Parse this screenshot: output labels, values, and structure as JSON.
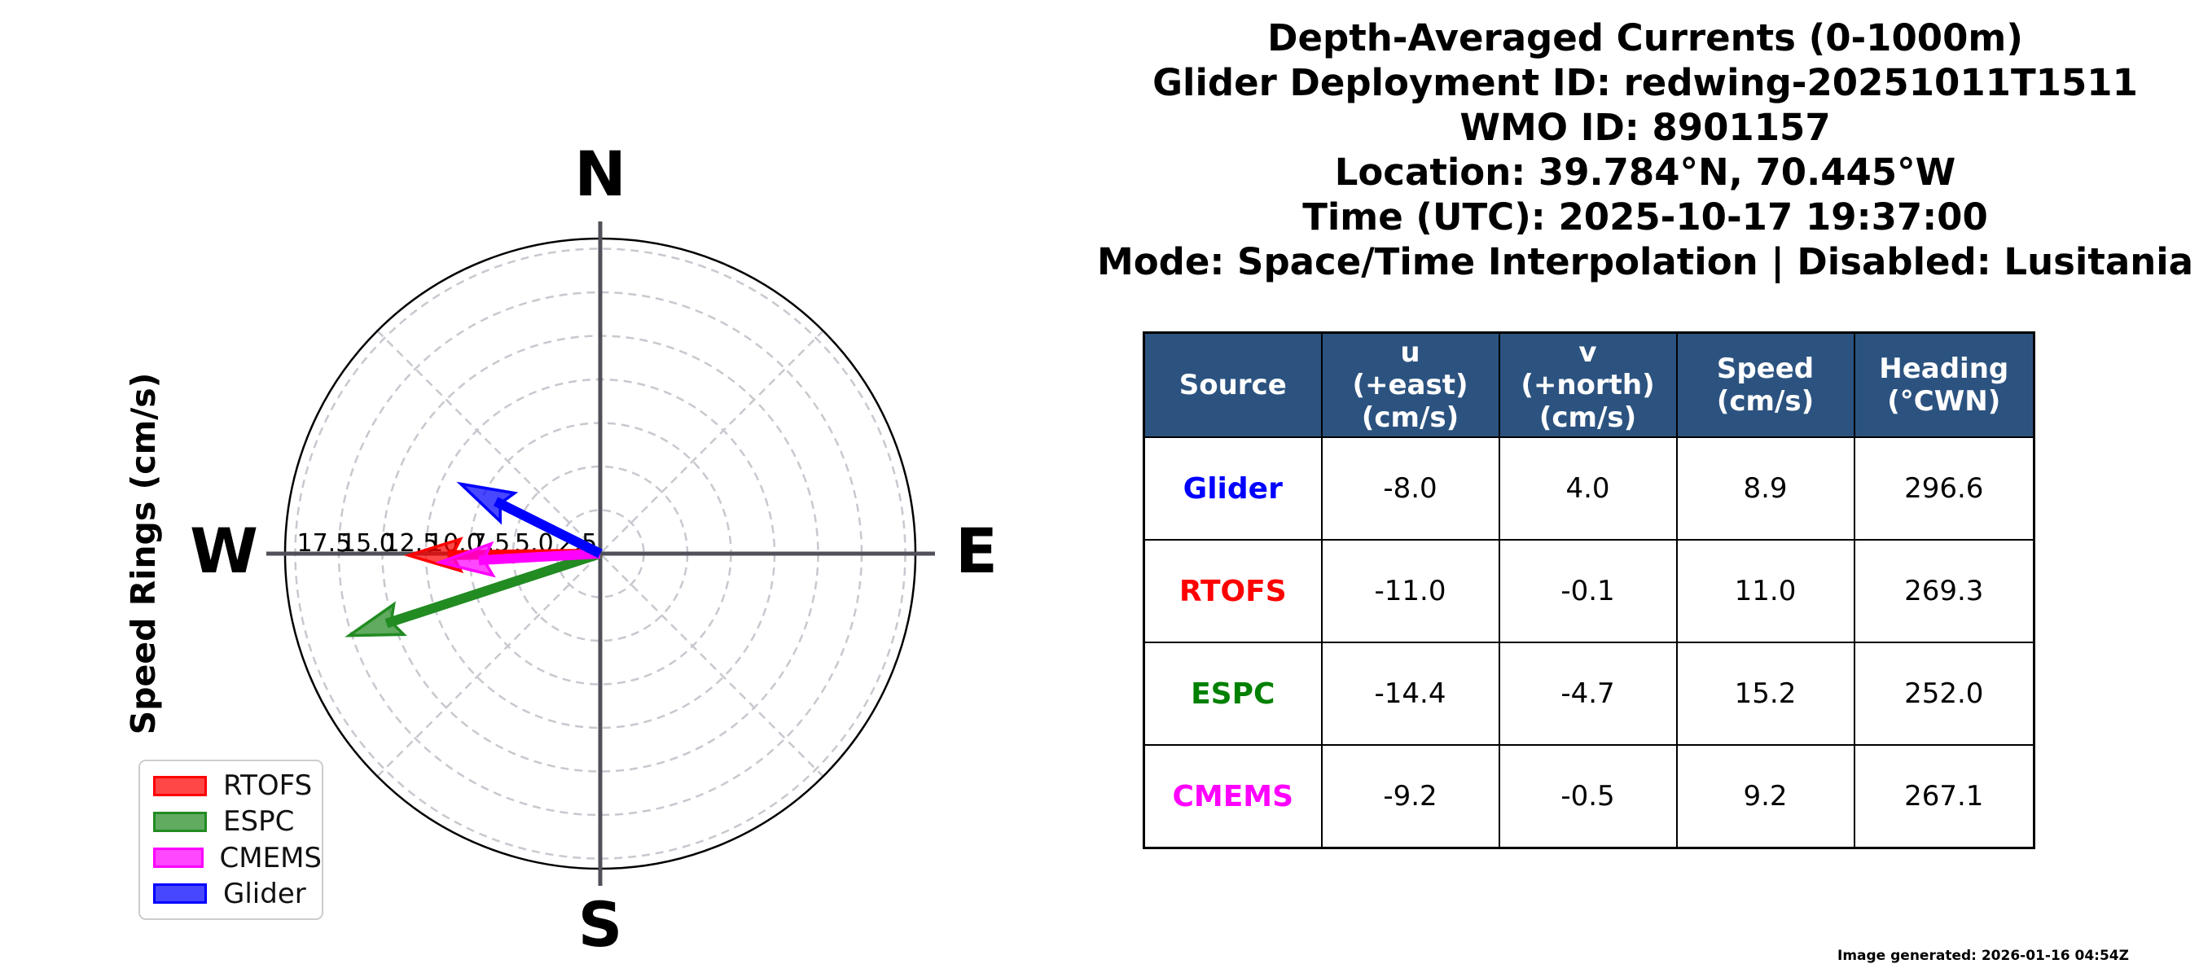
{
  "title_block": {
    "lines": [
      "Depth-Averaged Currents (0-1000m)",
      "Glider Deployment ID: redwing-20251011T1511",
      "WMO ID: 8901157",
      "Location: 39.784°N, 70.445°W",
      "Time (UTC): 2025-10-17 19:37:00",
      "Mode: Space/Time Interpolation | Disabled: Lusitania"
    ]
  },
  "compass": {
    "ylabel": "Speed Rings (cm/s)",
    "direction_labels": {
      "north": "N",
      "east": "E",
      "south": "S",
      "west": "W"
    },
    "ring_labels": [
      "2.5",
      "5.0",
      "7.5",
      "10.0",
      "12.5",
      "15.0",
      "17.5"
    ],
    "units": "cm/s"
  },
  "chart_data": {
    "type": "quiver",
    "subtype": "polar-compass-vector-plot",
    "title": "Depth-Averaged Currents (0-1000m)",
    "radial_axis_label": "Speed Rings (cm/s)",
    "radial_ticks_cms": [
      2.5,
      5.0,
      7.5,
      10.0,
      12.5,
      15.0,
      17.5
    ],
    "radial_max_cms": 18.1,
    "grid": "dashed concentric rings with 45-degree dashed diagonals",
    "legend_position": "lower left",
    "series": [
      {
        "name": "RTOFS",
        "color": "#ff0000",
        "u_cms": -11.0,
        "v_cms": -0.1,
        "speed_cms": 11.0,
        "heading_deg_cwn": 269.3
      },
      {
        "name": "ESPC",
        "color": "#228b22",
        "u_cms": -14.4,
        "v_cms": -4.7,
        "speed_cms": 15.2,
        "heading_deg_cwn": 252.0
      },
      {
        "name": "CMEMS",
        "color": "#ff00ff",
        "u_cms": -9.2,
        "v_cms": -0.5,
        "speed_cms": 9.2,
        "heading_deg_cwn": 267.1
      },
      {
        "name": "Glider",
        "color": "#0000ff",
        "u_cms": -8.0,
        "v_cms": 4.0,
        "speed_cms": 8.9,
        "heading_deg_cwn": 296.6
      }
    ]
  },
  "legend": {
    "items": [
      {
        "label": "RTOFS",
        "color": "#ff0000"
      },
      {
        "label": "ESPC",
        "color": "#228b22"
      },
      {
        "label": "CMEMS",
        "color": "#ff00ff"
      },
      {
        "label": "Glider",
        "color": "#0000ff"
      }
    ]
  },
  "table": {
    "header_color": "#2c5380",
    "headers": [
      "Source",
      "u\n(+east)\n(cm/s)",
      "v\n(+north)\n(cm/s)",
      "Speed\n(cm/s)",
      "Heading\n(°CWN)"
    ],
    "rows": [
      {
        "source": "Glider",
        "color": "#0000ff",
        "u": "-8.0",
        "v": "4.0",
        "speed": "8.9",
        "heading": "296.6"
      },
      {
        "source": "RTOFS",
        "color": "#ff0000",
        "u": "-11.0",
        "v": "-0.1",
        "speed": "11.0",
        "heading": "269.3"
      },
      {
        "source": "ESPC",
        "color": "#008000",
        "u": "-14.4",
        "v": "-4.7",
        "speed": "15.2",
        "heading": "252.0"
      },
      {
        "source": "CMEMS",
        "color": "#ff00ff",
        "u": "-9.2",
        "v": "-0.5",
        "speed": "9.2",
        "heading": "267.1"
      }
    ]
  },
  "footer": {
    "generated_text": "Image generated: 2026-01-16 04:54Z"
  }
}
